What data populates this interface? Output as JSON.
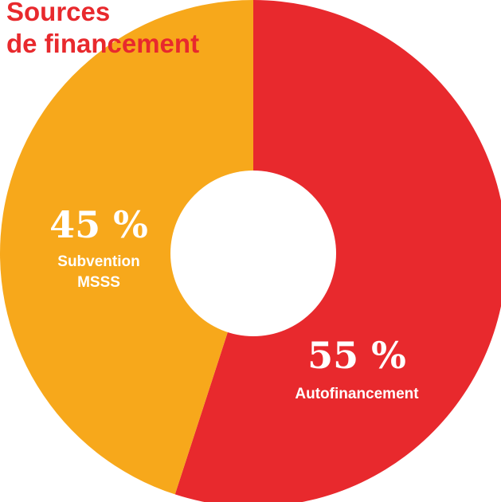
{
  "chart_data": {
    "type": "pie",
    "title_lines": [
      "Sources",
      "de financement"
    ],
    "categories": [
      "Autofinancement",
      "Subvention MSSS"
    ],
    "values": [
      55,
      45
    ],
    "value_labels": [
      "55 %",
      "45 %"
    ],
    "category_label_lines": [
      [
        "Autofinancement"
      ],
      [
        "Subvention",
        "MSSS"
      ]
    ],
    "colors": [
      "#e8292d",
      "#f7a81b"
    ],
    "title_color": "#e8292d"
  }
}
